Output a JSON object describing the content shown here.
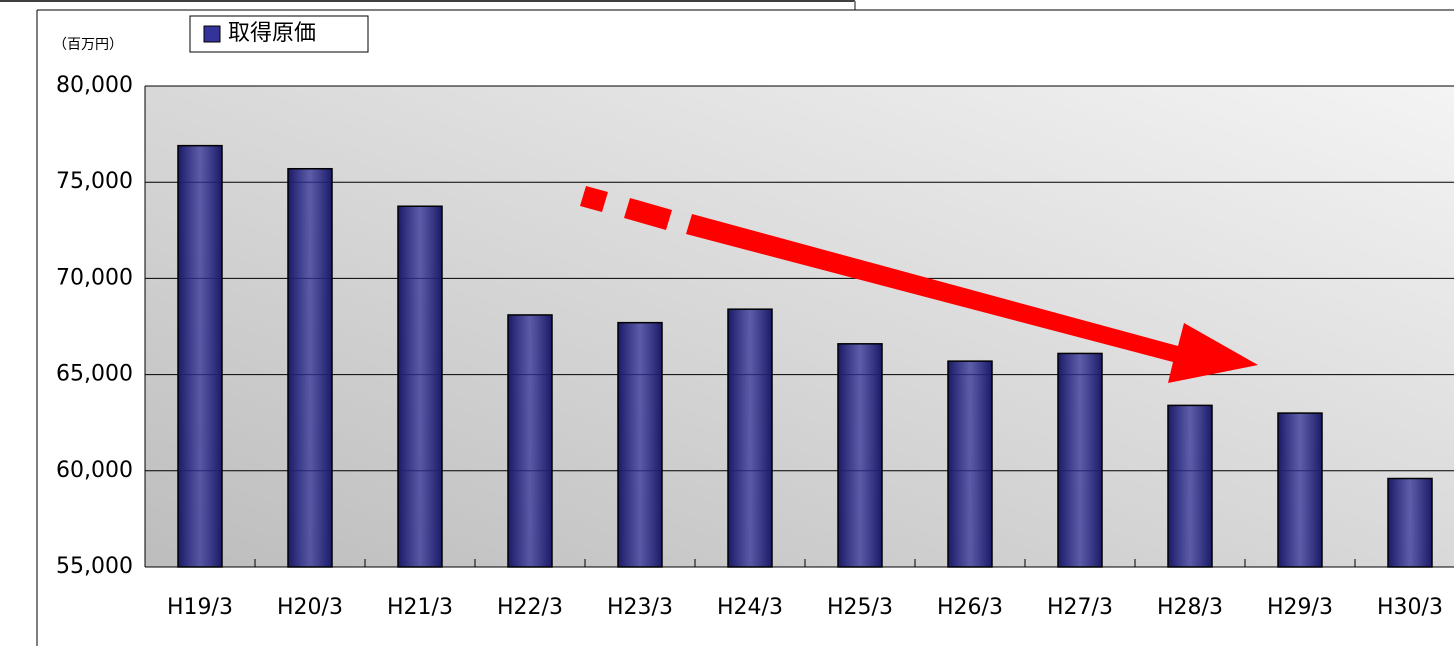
{
  "chart_data": {
    "type": "bar",
    "unit_label": "（百万円）",
    "categories": [
      "H19/3",
      "H20/3",
      "H21/3",
      "H22/3",
      "H23/3",
      "H24/3",
      "H25/3",
      "H26/3",
      "H27/3",
      "H28/3",
      "H29/3",
      "H30/3"
    ],
    "series": [
      {
        "name": "取得原価",
        "color": "#333399",
        "values": [
          76900,
          75700,
          73750,
          68100,
          67700,
          68400,
          66600,
          65700,
          66100,
          63400,
          63000,
          59600
        ]
      }
    ],
    "ylim": [
      55000,
      80000
    ],
    "yticks": [
      {
        "value": 55000,
        "label": "55,000"
      },
      {
        "value": 60000,
        "label": "60,000"
      },
      {
        "value": 65000,
        "label": "65,000"
      },
      {
        "value": 70000,
        "label": "70,000"
      },
      {
        "value": 75000,
        "label": "75,000"
      },
      {
        "value": 80000,
        "label": "80,000"
      }
    ],
    "grid": true
  }
}
